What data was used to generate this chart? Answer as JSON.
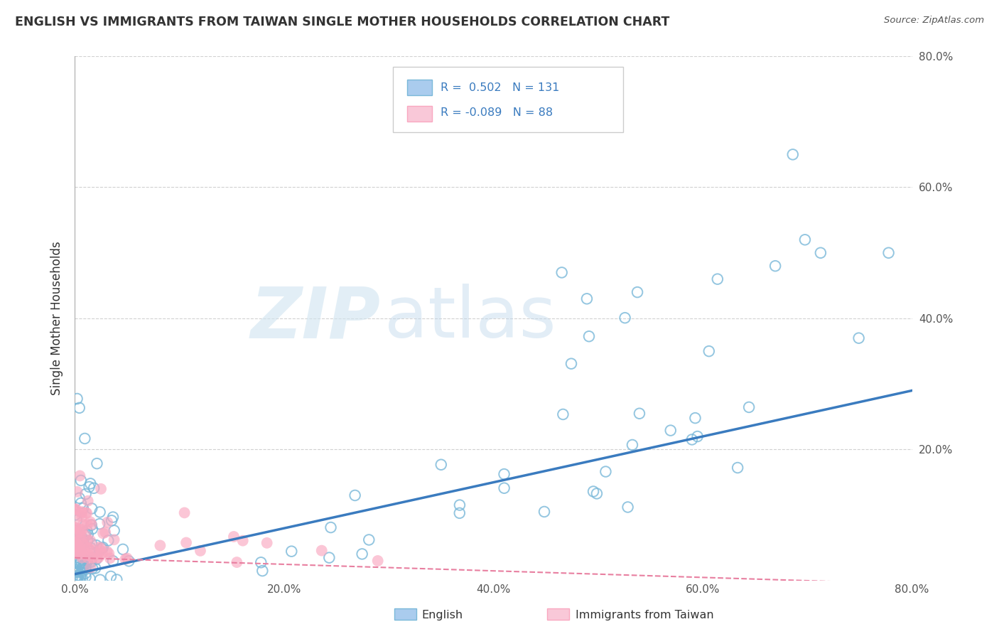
{
  "title": "ENGLISH VS IMMIGRANTS FROM TAIWAN SINGLE MOTHER HOUSEHOLDS CORRELATION CHART",
  "source": "Source: ZipAtlas.com",
  "ylabel": "Single Mother Households",
  "xlabel_english": "English",
  "xlabel_taiwan": "Immigrants from Taiwan",
  "watermark_zip": "ZIP",
  "watermark_atlas": "atlas",
  "r_english": 0.502,
  "n_english": 131,
  "r_taiwan": -0.089,
  "n_taiwan": 88,
  "xlim": [
    0.0,
    0.8
  ],
  "ylim": [
    0.0,
    0.8
  ],
  "color_english": "#7ab8d9",
  "color_taiwan": "#f9a8c0",
  "color_line_english": "#3a7bbf",
  "color_line_taiwan": "#e87fa0",
  "background": "#ffffff",
  "grid_color": "#cccccc",
  "title_color": "#333333",
  "source_color": "#555555",
  "tick_color": "#555555",
  "legend_text_color": "#3a7bbf"
}
